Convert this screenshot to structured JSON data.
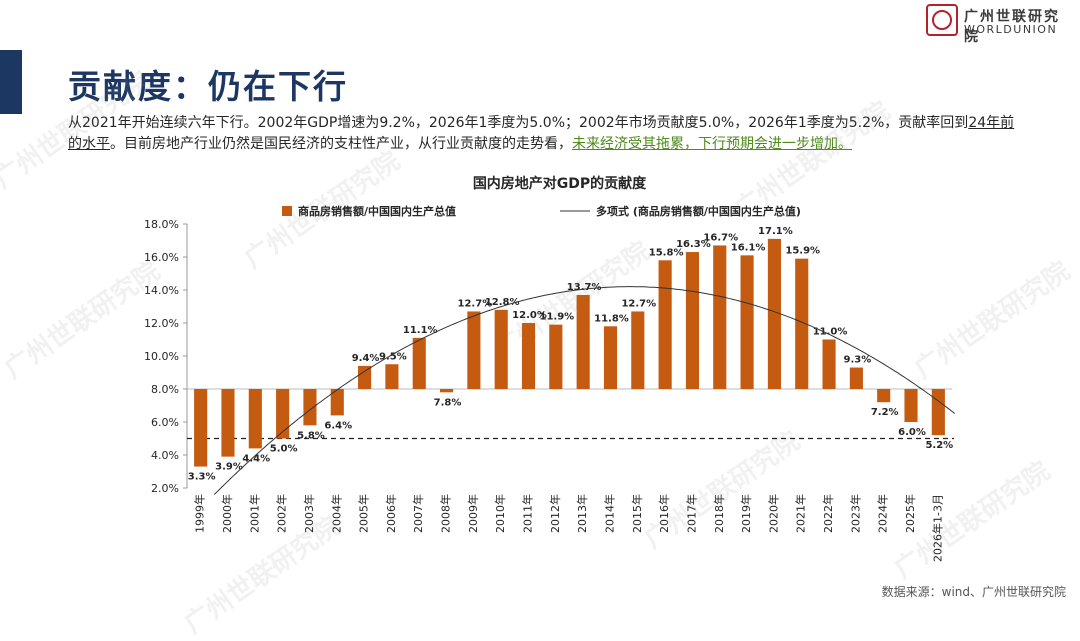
{
  "header": {
    "title": "贡献度：仍在下行",
    "logo_cn": "广州世联研究院",
    "logo_en": "WORLDUNION"
  },
  "description": {
    "part1": "从2021年开始连续六年下行。2002年GDP增速为9.2%，2026年1季度为5.0%；2002年市场贡献度5.0%，2026年1季度为5.2%，贡献率回到",
    "part2": "24年前的水平",
    "part3": "。目前房地产行业仍然是国民经济的支柱性产业，从行业贡献度的走势看，",
    "part4": "未来经济受其拖累，下行预期会进一步增加。"
  },
  "source": "数据来源：wind、广州世联研究院",
  "watermark": "广州世联研究院",
  "colors": {
    "bar": "#c55a11",
    "title": "#1d3763",
    "green": "#4e8a1c"
  },
  "chart_data": {
    "type": "bar",
    "title": "国内房地产对GDP的贡献度",
    "legend_bar": "商品房销售额/中国国内生产总值",
    "legend_line": "多项式 (商品房销售额/中国国内生产总值)",
    "categories": [
      "1999年",
      "2000年",
      "2001年",
      "2002年",
      "2003年",
      "2004年",
      "2005年",
      "2006年",
      "2007年",
      "2008年",
      "2009年",
      "2010年",
      "2011年",
      "2012年",
      "2013年",
      "2014年",
      "2015年",
      "2016年",
      "2017年",
      "2018年",
      "2019年",
      "2020年",
      "2021年",
      "2022年",
      "2023年",
      "2024年",
      "2025年",
      "2026年1-3月"
    ],
    "values": [
      3.3,
      3.9,
      4.4,
      5.0,
      5.8,
      6.4,
      9.4,
      9.5,
      11.1,
      7.8,
      12.7,
      12.8,
      12.0,
      11.9,
      13.7,
      11.8,
      12.7,
      15.8,
      16.3,
      16.7,
      16.1,
      17.1,
      15.9,
      11.0,
      9.3,
      7.2,
      6.0,
      5.2
    ],
    "labels": [
      "3.3%",
      "3.9%",
      "4.4%",
      "5.0%",
      "5.8%",
      "6.4%",
      "9.4%",
      "9.5%",
      "11.1%",
      "7.8%",
      "12.7%",
      "12.8%",
      "12.0%",
      "11.9%",
      "13.7%",
      "11.8%",
      "12.7%",
      "15.8%",
      "16.3%",
      "16.7%",
      "16.1%",
      "17.1%",
      "15.9%",
      "11.0%",
      "9.3%",
      "7.2%",
      "6.0%",
      "5.2%"
    ],
    "y_ticks": [
      "2.0%",
      "4.0%",
      "6.0%",
      "8.0%",
      "10.0%",
      "12.0%",
      "14.0%",
      "16.0%",
      "18.0%"
    ],
    "y_tick_values": [
      2,
      4,
      6,
      8,
      10,
      12,
      14,
      16,
      18
    ],
    "ylim": [
      2,
      18
    ],
    "bar_baseline": 8.0,
    "reference_line": 5.0,
    "trend_polynomial": true
  }
}
